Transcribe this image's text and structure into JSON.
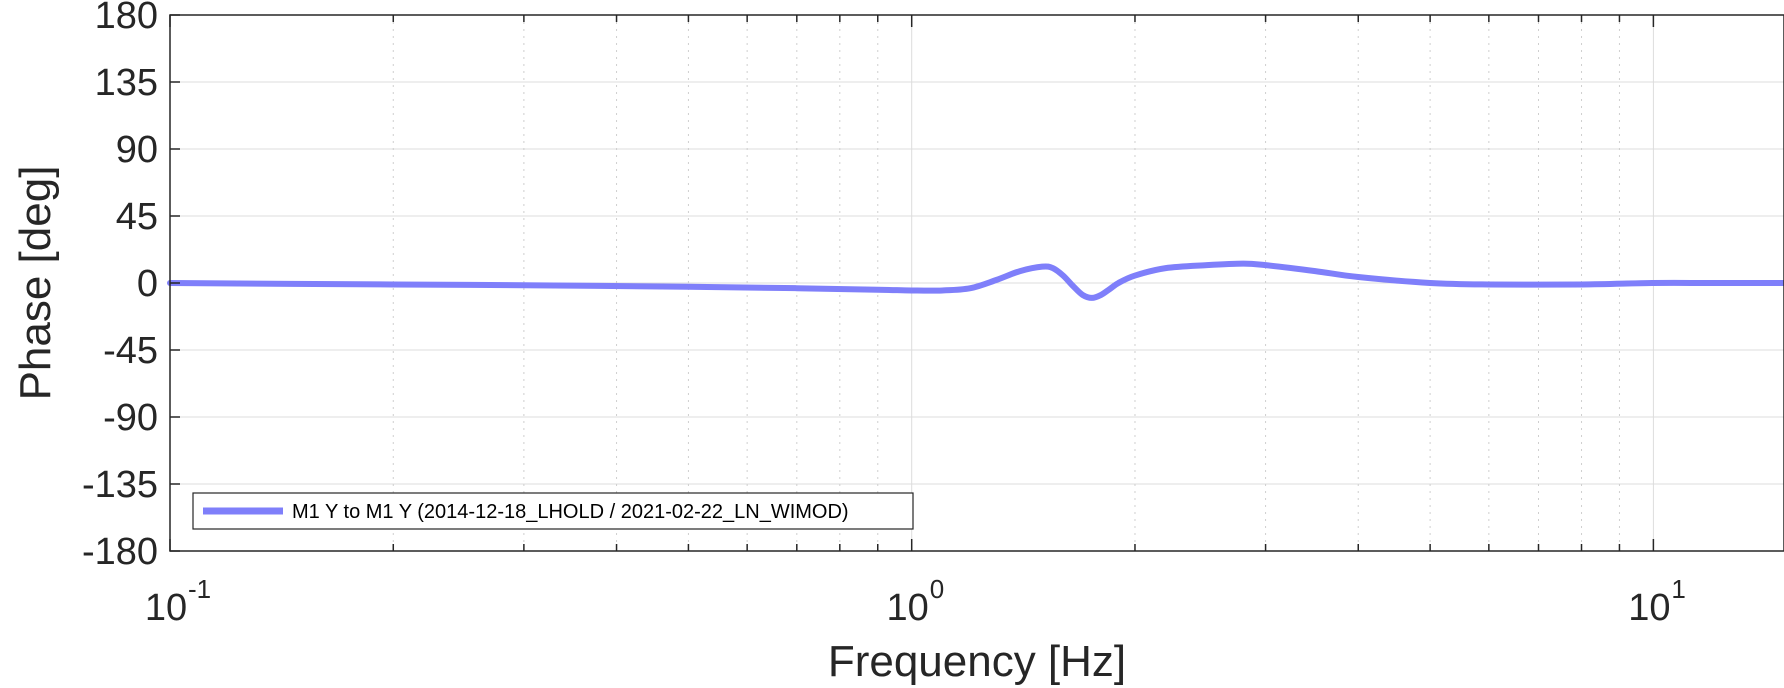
{
  "chart_data": {
    "type": "line",
    "title": "",
    "xlabel": "Frequency [Hz]",
    "ylabel": "Phase [deg]",
    "xscale": "log",
    "xlim": [
      0.1,
      15
    ],
    "ylim": [
      -180,
      180
    ],
    "grid": true,
    "legend_position": "bottom-left",
    "x_ticks": [
      {
        "value": 0.1,
        "base": "10",
        "exp": "-1"
      },
      {
        "value": 1,
        "base": "10",
        "exp": "0"
      },
      {
        "value": 10,
        "base": "10",
        "exp": "1"
      }
    ],
    "y_ticks": [
      180,
      135,
      90,
      45,
      0,
      -45,
      -90,
      -135,
      -180
    ],
    "y_tick_labels": [
      "180",
      "135",
      "90",
      "45",
      "0",
      "-45",
      "-90",
      "-135",
      "-180"
    ],
    "series": [
      {
        "name": "M1 Y to M1 Y (2014-12-18_LHOLD / 2021-02-22_LN_WIMOD)",
        "color": "#7f7ffa",
        "x": [
          0.1,
          0.2,
          0.3,
          0.5,
          0.7,
          0.9,
          1.0,
          1.1,
          1.2,
          1.3,
          1.4,
          1.5,
          1.55,
          1.6,
          1.65,
          1.7,
          1.75,
          1.8,
          1.85,
          1.9,
          2.0,
          2.2,
          2.5,
          2.8,
          3.0,
          3.5,
          4.0,
          5.0,
          6.0,
          8.0,
          10.0,
          12.0,
          15.0
        ],
        "y": [
          0,
          -1,
          -1.5,
          -2.5,
          -3.5,
          -4.5,
          -5,
          -5,
          -3.5,
          2,
          8,
          11,
          10,
          5,
          -2,
          -8,
          -10,
          -8,
          -4,
          0,
          5,
          10,
          12,
          13,
          12,
          8,
          4,
          0,
          -1,
          -1,
          0,
          0,
          0
        ]
      }
    ]
  }
}
